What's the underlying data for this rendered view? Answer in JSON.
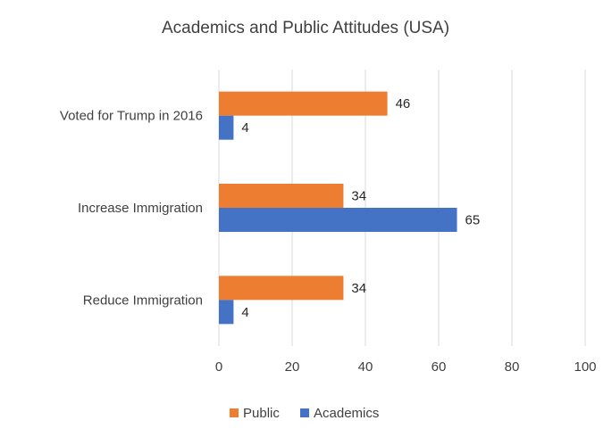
{
  "chart_data": {
    "type": "bar",
    "orientation": "horizontal",
    "title": "Academics and Public Attitudes (USA)",
    "categories": [
      "Voted for Trump in 2016",
      "Increase Immigration",
      "Reduce Immigration"
    ],
    "series": [
      {
        "name": "Public",
        "color": "#ED7D31",
        "values": [
          46,
          34,
          34
        ]
      },
      {
        "name": "Academics",
        "color": "#4472C4",
        "values": [
          4,
          65,
          4
        ]
      }
    ],
    "xlim": [
      0,
      100
    ],
    "xticks": [
      0,
      20,
      40,
      60,
      80,
      100
    ],
    "grid": true,
    "data_labels": true,
    "legend_position": "bottom"
  }
}
